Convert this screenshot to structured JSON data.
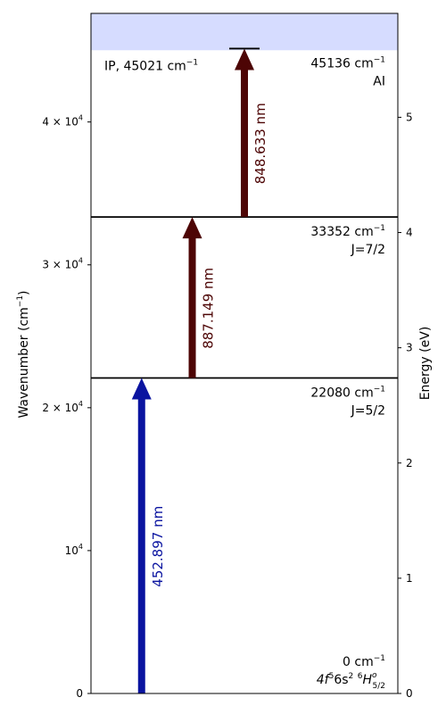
{
  "diagram": {
    "y_axis": {
      "label_main": "Wavenumber (cm",
      "label_sup": "−1",
      "label_end": ")",
      "range": [
        0,
        47600
      ],
      "ticks": [
        {
          "value": 0,
          "plain": "0"
        },
        {
          "value": 10000,
          "base": "10",
          "exp": "4"
        },
        {
          "value": 20000,
          "mant": "2 × 10",
          "exp": "4"
        },
        {
          "value": 30000,
          "mant": "3 × 10",
          "exp": "4"
        },
        {
          "value": 40000,
          "mant": "4 × 10",
          "exp": "4"
        }
      ]
    },
    "energy_axis": {
      "label": "Energy (eV)",
      "ev_per_cm": 0.000123984,
      "ticks": [
        {
          "value": 0,
          "label": "0"
        },
        {
          "value": 1,
          "label": "1"
        },
        {
          "value": 2,
          "label": "2"
        },
        {
          "value": 3,
          "label": "3"
        },
        {
          "value": 4,
          "label": "4"
        },
        {
          "value": 5,
          "label": "5"
        }
      ]
    },
    "ionization": {
      "value": 45021,
      "label_prefix": "IP, 45021 cm",
      "label_sup": "−1",
      "continuum_color": "#d6dcff"
    },
    "levels": [
      {
        "value": 0,
        "energy_text": "0 cm",
        "energy_sup": "−1"
      },
      {
        "value": 22080,
        "energy_text": "22080 cm",
        "energy_sup": "−1",
        "j_label": "J=5/2"
      },
      {
        "value": 33352,
        "energy_text": "33352 cm",
        "energy_sup": "−1",
        "j_label": "J=7/2"
      },
      {
        "value": 45136,
        "energy_text": "45136 cm",
        "energy_sup": "−1",
        "j_label": "AI"
      }
    ],
    "ground_config": {
      "p1": "4f",
      "s1": "5",
      "p2": "6s",
      "s2": "2",
      "p3": " ",
      "s3": "6",
      "p4": "H",
      "sup4": "o",
      "sub4": "5/2"
    },
    "transitions": [
      {
        "lower": 0,
        "upper": 22080,
        "wavelength_label": "452.897 nm",
        "color": "#0a14a0",
        "slot": 0.165
      },
      {
        "lower": 22080,
        "upper": 33352,
        "wavelength_label": "887.149 nm",
        "color": "#4d0505",
        "slot": 0.33
      },
      {
        "lower": 33352,
        "upper": 45136,
        "wavelength_label": "848.633 nm",
        "color": "#4d0505",
        "slot": 0.5
      }
    ]
  }
}
